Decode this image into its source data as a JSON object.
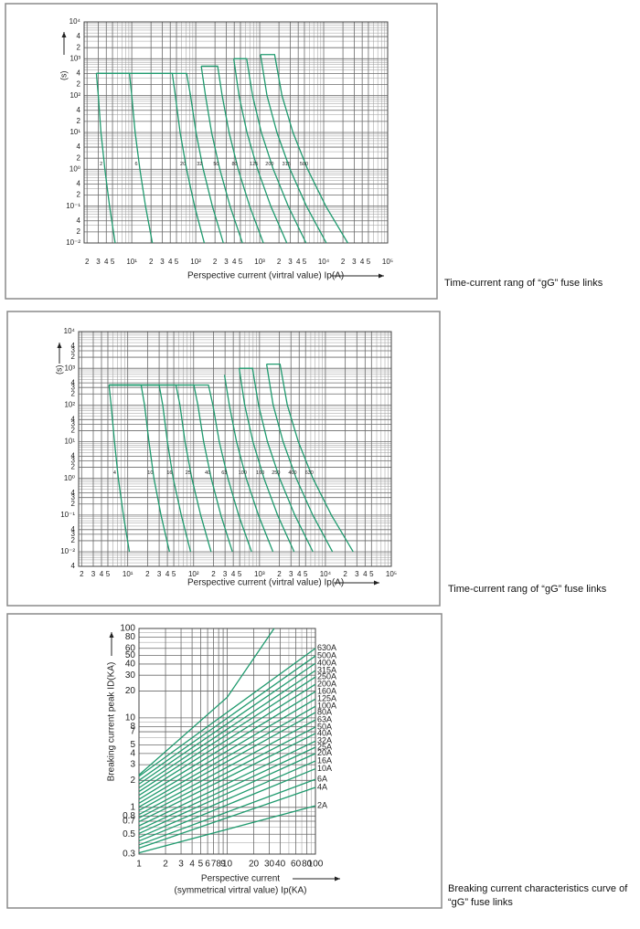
{
  "chart_data": [
    {
      "type": "line",
      "log_x": true,
      "log_y": true,
      "grid": true,
      "color": "#1f9a6e",
      "xlabel": "Perspective current (virtral value) Ip(A)",
      "ylabel": "(s)",
      "caption": "Time-current rang of “gG” fuse links",
      "xlim": [
        1.8,
        100000
      ],
      "ylim": [
        0.01,
        10000
      ],
      "xticks": [
        2,
        3,
        4,
        5,
        {
          "value": 10,
          "label": "10¹"
        },
        {
          "value": 20,
          "label": "2"
        },
        {
          "value": 30,
          "label": "3"
        },
        {
          "value": 40,
          "label": "4"
        },
        {
          "value": 50,
          "label": "5"
        },
        {
          "value": 100,
          "label": "10²"
        },
        {
          "value": 200,
          "label": "2"
        },
        {
          "value": 300,
          "label": "3"
        },
        {
          "value": 400,
          "label": "4"
        },
        {
          "value": 500,
          "label": "5"
        },
        {
          "value": 1000,
          "label": "10³"
        },
        {
          "value": 2000,
          "label": "2"
        },
        {
          "value": 3000,
          "label": "3"
        },
        {
          "value": 4000,
          "label": "4"
        },
        {
          "value": 5000,
          "label": "5"
        },
        {
          "value": 10000,
          "label": "10⁴"
        },
        {
          "value": 20000,
          "label": "2"
        },
        {
          "value": 30000,
          "label": "3"
        },
        {
          "value": 40000,
          "label": "4"
        },
        {
          "value": 50000,
          "label": "5"
        },
        {
          "value": 100000,
          "label": "10⁵"
        }
      ],
      "yticks": [
        {
          "value": 10000,
          "label": "10⁴"
        },
        {
          "value": 4000,
          "label": "4"
        },
        {
          "value": 2000,
          "label": "2"
        },
        {
          "value": 1000,
          "label": "10³"
        },
        {
          "value": 400,
          "label": "4"
        },
        {
          "value": 200,
          "label": "2"
        },
        {
          "value": 100,
          "label": "10²"
        },
        {
          "value": 40,
          "label": "4"
        },
        {
          "value": 20,
          "label": "2"
        },
        {
          "value": 10,
          "label": "10¹"
        },
        4,
        2,
        {
          "value": 1,
          "label": "10⁰"
        },
        {
          "value": 0.4,
          "label": "4"
        },
        {
          "value": 0.2,
          "label": "2"
        },
        {
          "value": 0.1,
          "label": "10⁻¹"
        },
        {
          "value": 0.04,
          "label": "4"
        },
        {
          "value": 0.02,
          "label": "2"
        },
        {
          "value": 0.01,
          "label": "10⁻²"
        }
      ],
      "series": [
        {
          "name": "2",
          "x": [
            2.8,
            3.0,
            3.3,
            3.8,
            4.5,
            5.5
          ],
          "values": [
            400,
            100,
            10,
            1,
            0.1,
            0.01
          ]
        },
        {
          "name": "6",
          "x": [
            2.8,
            9.2,
            10,
            11.3,
            13.4,
            16.4,
            21
          ],
          "values": [
            400,
            400,
            100,
            10,
            1,
            0.1,
            0.01
          ]
        },
        {
          "name": "20",
          "x": [
            2.8,
            43,
            48,
            57,
            72,
            96,
            136
          ],
          "values": [
            400,
            400,
            100,
            10,
            1,
            0.1,
            0.01
          ]
        },
        {
          "name": "32",
          "x": [
            2.8,
            72,
            83,
            101,
            131,
            182,
            270
          ],
          "values": [
            400,
            400,
            100,
            10,
            1,
            0.1,
            0.01
          ]
        },
        {
          "name": "50",
          "x": [
            122,
            142,
            177,
            238,
            344,
            537
          ],
          "values": [
            630,
            100,
            10,
            1,
            0.1,
            0.01
          ]
        },
        {
          "name": "80",
          "x": [
            122,
            220,
            259,
            332,
            461,
            697,
            1140
          ],
          "values": [
            630,
            630,
            100,
            10,
            1,
            0.1,
            0.01
          ]
        },
        {
          "name": "125",
          "x": [
            393,
            475,
            632,
            927,
            1490,
            2650
          ],
          "values": [
            1000,
            100,
            10,
            1,
            0.1,
            0.01
          ]
        },
        {
          "name": "200",
          "x": [
            393,
            625,
            774,
            1060,
            1630,
            2790,
            5300
          ],
          "values": [
            1000,
            1000,
            100,
            10,
            1,
            0.1,
            0.01
          ]
        },
        {
          "name": "315",
          "x": [
            1030,
            1300,
            1860,
            2980,
            5380,
            11000
          ],
          "values": [
            1300,
            100,
            10,
            1,
            0.1,
            0.01
          ]
        },
        {
          "name": "500",
          "x": [
            1030,
            1710,
            2230,
            3310,
            5610,
            10800,
            23800
          ],
          "values": [
            1300,
            1300,
            100,
            10,
            1,
            0.1,
            0.01
          ]
        }
      ]
    },
    {
      "type": "line",
      "log_x": true,
      "log_y": true,
      "grid": true,
      "color": "#1f9a6e",
      "xlabel": "Perspective current (virtral value) Ip(A)",
      "ylabel": "(s)",
      "caption": "Time-current rang of “gG” fuse links",
      "xlim": [
        1.8,
        100000
      ],
      "ylim": [
        0.004,
        10000
      ],
      "xticks": [
        2,
        3,
        4,
        5,
        {
          "value": 10,
          "label": "10¹"
        },
        {
          "value": 20,
          "label": "2"
        },
        {
          "value": 30,
          "label": "3"
        },
        {
          "value": 40,
          "label": "4"
        },
        {
          "value": 50,
          "label": "5"
        },
        {
          "value": 100,
          "label": "10²"
        },
        {
          "value": 200,
          "label": "2"
        },
        {
          "value": 300,
          "label": "3"
        },
        {
          "value": 400,
          "label": "4"
        },
        {
          "value": 500,
          "label": "5"
        },
        {
          "value": 1000,
          "label": "10³"
        },
        {
          "value": 2000,
          "label": "2"
        },
        {
          "value": 3000,
          "label": "3"
        },
        {
          "value": 4000,
          "label": "4"
        },
        {
          "value": 5000,
          "label": "5"
        },
        {
          "value": 10000,
          "label": "10⁴"
        },
        {
          "value": 20000,
          "label": "2"
        },
        {
          "value": 30000,
          "label": "3"
        },
        {
          "value": 40000,
          "label": "4"
        },
        {
          "value": 50000,
          "label": "5"
        },
        {
          "value": 100000,
          "label": "10⁵"
        }
      ],
      "yticks": [
        {
          "value": 10000,
          "label": "10⁴"
        },
        {
          "value": 4000,
          "label": "4"
        },
        {
          "value": 3000,
          "label": "3"
        },
        {
          "value": 2000,
          "label": "2"
        },
        {
          "value": 1000,
          "label": "10³"
        },
        {
          "value": 400,
          "label": "4"
        },
        {
          "value": 300,
          "label": "3"
        },
        {
          "value": 200,
          "label": "2"
        },
        {
          "value": 100,
          "label": "10²"
        },
        {
          "value": 40,
          "label": "4"
        },
        {
          "value": 30,
          "label": "3"
        },
        {
          "value": 20,
          "label": "2"
        },
        {
          "value": 10,
          "label": "10¹"
        },
        4,
        3,
        2,
        {
          "value": 1,
          "label": "10⁰"
        },
        {
          "value": 0.4,
          "label": "4"
        },
        {
          "value": 0.3,
          "label": "3"
        },
        {
          "value": 0.2,
          "label": "2"
        },
        {
          "value": 0.1,
          "label": "10⁻¹"
        },
        {
          "value": 0.04,
          "label": "4"
        },
        {
          "value": 0.03,
          "label": "3"
        },
        {
          "value": 0.02,
          "label": "2"
        },
        {
          "value": 0.01,
          "label": "10⁻²"
        },
        {
          "value": 0.004,
          "label": "4"
        }
      ],
      "series": [
        {
          "name": "4",
          "x": [
            5.2,
            5.6,
            6.3,
            7.2,
            8.6,
            10.6
          ],
          "values": [
            350,
            100,
            10,
            1,
            0.1,
            0.01
          ]
        },
        {
          "name": "10",
          "x": [
            5.2,
            16,
            18,
            21,
            25,
            32,
            43
          ],
          "values": [
            350,
            350,
            100,
            10,
            1,
            0.1,
            0.01
          ]
        },
        {
          "name": "16",
          "x": [
            5.2,
            30,
            34,
            40,
            49,
            65,
            90
          ],
          "values": [
            350,
            350,
            100,
            10,
            1,
            0.1,
            0.01
          ]
        },
        {
          "name": "25",
          "x": [
            5.2,
            54,
            62,
            74,
            94,
            128,
            184
          ],
          "values": [
            350,
            350,
            100,
            10,
            1,
            0.1,
            0.01
          ]
        },
        {
          "name": "40",
          "x": [
            5.2,
            101,
            116,
            142,
            185,
            259,
            388
          ],
          "values": [
            350,
            350,
            100,
            10,
            1,
            0.1,
            0.01
          ]
        },
        {
          "name": "63",
          "x": [
            5.2,
            168,
            196,
            245,
            332,
            482,
            757
          ],
          "values": [
            350,
            350,
            100,
            10,
            1,
            0.1,
            0.01
          ]
        },
        {
          "name": "100",
          "x": [
            294,
            348,
            448,
            629,
            962,
            1600
          ],
          "values": [
            660,
            100,
            10,
            1,
            0.1,
            0.01
          ]
        },
        {
          "name": "160",
          "x": [
            492,
            596,
            794,
            1170,
            1880,
            3350
          ],
          "values": [
            1000,
            100,
            10,
            1,
            0.1,
            0.01
          ]
        },
        {
          "name": "250",
          "x": [
            492,
            782,
            966,
            1320,
            2020,
            3430,
            6460
          ],
          "values": [
            1000,
            1000,
            100,
            10,
            1,
            0.1,
            0.01
          ]
        },
        {
          "name": "400",
          "x": [
            1280,
            1610,
            2280,
            3610,
            6430,
            12800
          ],
          "values": [
            1300,
            100,
            10,
            1,
            0.1,
            0.01
          ]
        },
        {
          "name": "630",
          "x": [
            1280,
            2050,
            2640,
            3880,
            6470,
            12300,
            26400
          ],
          "values": [
            1300,
            1300,
            100,
            10,
            1,
            0.1,
            0.01
          ]
        }
      ]
    },
    {
      "type": "line",
      "log_x": true,
      "log_y": true,
      "grid": true,
      "color": "#1f9a6e",
      "xlabel": [
        "Perspective current",
        "(symmetrical virtral value) Ip(KA)"
      ],
      "ylabel": "Breaking current peak ID(KA)",
      "caption": "Breaking current characteristics curve of “gG” fuse links",
      "xlim": [
        1,
        100
      ],
      "ylim": [
        0.3,
        100
      ],
      "xticks": [
        1,
        2,
        3,
        4,
        5,
        6,
        7,
        8,
        9,
        10,
        20,
        30,
        40,
        60,
        80,
        100
      ],
      "yticks": [
        100,
        80,
        60,
        50,
        40,
        30,
        20,
        10,
        8,
        7,
        5,
        4,
        3,
        2,
        1,
        0.8,
        0.7,
        0.5,
        0.3
      ],
      "series": [
        {
          "name": "2A",
          "x": [
            1,
            100
          ],
          "values": [
            0.31,
            1.04
          ]
        },
        {
          "name": "4A",
          "x": [
            1,
            100
          ],
          "values": [
            0.35,
            1.67
          ]
        },
        {
          "name": "6A",
          "x": [
            1,
            100
          ],
          "values": [
            0.38,
            2.06
          ]
        },
        {
          "name": "10A",
          "x": [
            1,
            100
          ],
          "values": [
            0.42,
            2.7
          ]
        },
        {
          "name": "16A",
          "x": [
            1,
            100
          ],
          "values": [
            0.46,
            3.3
          ]
        },
        {
          "name": "20A",
          "x": [
            1,
            100
          ],
          "values": [
            0.51,
            4.0
          ]
        },
        {
          "name": "25A",
          "x": [
            1,
            100
          ],
          "values": [
            0.56,
            4.7
          ]
        },
        {
          "name": "32A",
          "x": [
            1,
            100
          ],
          "values": [
            0.62,
            5.5
          ]
        },
        {
          "name": "40A",
          "x": [
            1,
            100
          ],
          "values": [
            0.69,
            6.7
          ]
        },
        {
          "name": "50A",
          "x": [
            1,
            100
          ],
          "values": [
            0.76,
            7.9
          ]
        },
        {
          "name": "63A",
          "x": [
            1,
            100
          ],
          "values": [
            0.83,
            9.5
          ]
        },
        {
          "name": "80A",
          "x": [
            1,
            100
          ],
          "values": [
            0.92,
            11.5
          ]
        },
        {
          "name": "100A",
          "x": [
            1,
            100
          ],
          "values": [
            1.01,
            13.5
          ]
        },
        {
          "name": "125A",
          "x": [
            1,
            100
          ],
          "values": [
            1.11,
            16.3
          ]
        },
        {
          "name": "160A",
          "x": [
            1,
            100
          ],
          "values": [
            1.23,
            19.7
          ]
        },
        {
          "name": "200A",
          "x": [
            1,
            100
          ],
          "values": [
            1.36,
            23.8
          ]
        },
        {
          "name": "250A",
          "x": [
            1,
            100
          ],
          "values": [
            1.5,
            28.7
          ]
        },
        {
          "name": "315A",
          "x": [
            1,
            100
          ],
          "values": [
            1.65,
            33.9
          ]
        },
        {
          "name": "400A",
          "x": [
            1,
            100
          ],
          "values": [
            1.82,
            40.8
          ]
        },
        {
          "name": "500A",
          "x": [
            1,
            100
          ],
          "values": [
            2.0,
            49.3
          ]
        },
        {
          "name": "630A",
          "x": [
            1,
            100
          ],
          "values": [
            2.22,
            60
          ]
        },
        {
          "x": [
            1,
            10,
            34
          ],
          "values": [
            2.3,
            17,
            100
          ]
        }
      ]
    }
  ]
}
